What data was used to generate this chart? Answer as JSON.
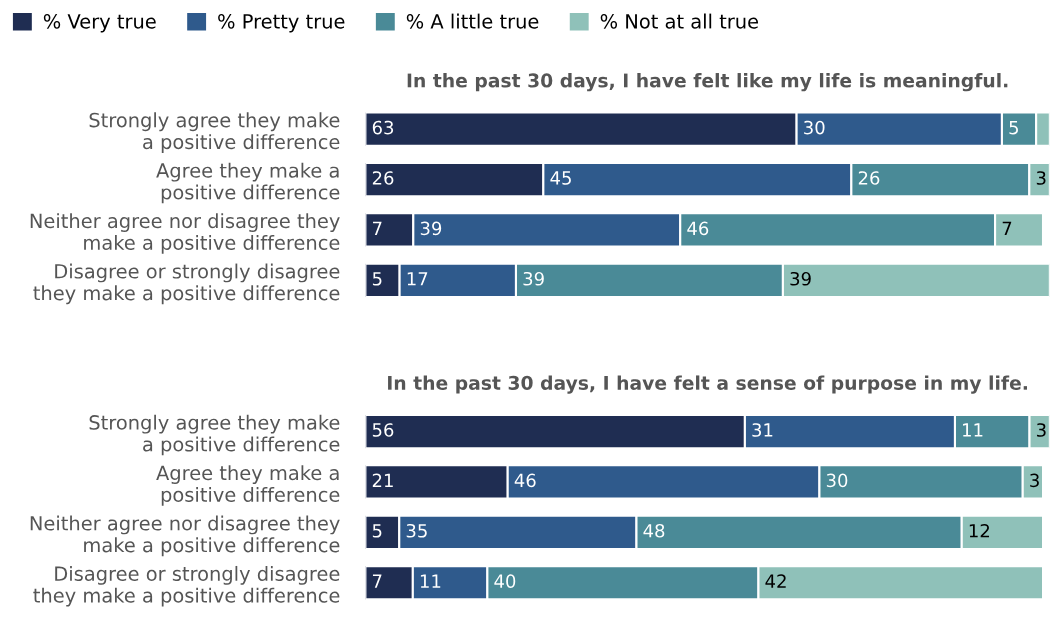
{
  "chart_data": [
    {
      "type": "bar",
      "orientation": "horizontal",
      "stacked": true,
      "legend": "top left",
      "title": "In the past 30 days, I have felt like my life is meaningful.",
      "categories": [
        "Strongly agree they make\na positive difference",
        "Agree they make a\npositive difference",
        "Neither agree nor disagree they\nmake a positive difference",
        "Disagree or strongly disagree\nthey make a positive difference"
      ],
      "series": [
        {
          "name": "% Very true",
          "color": "#1f2d52",
          "values": [
            63,
            26,
            7,
            5
          ],
          "value_labels": [
            "63",
            "26",
            "7",
            "5"
          ]
        },
        {
          "name": "% Pretty true",
          "color": "#2f5a8c",
          "values": [
            30,
            45,
            39,
            17
          ],
          "value_labels": [
            "30",
            "45",
            "39",
            "17"
          ]
        },
        {
          "name": "% A little true",
          "color": "#4a8a97",
          "values": [
            5,
            26,
            46,
            39
          ],
          "value_labels": [
            "5",
            "26",
            "46",
            "39"
          ]
        },
        {
          "name": "% Not at all true",
          "color": "#8fc1b9",
          "values": [
            2,
            3,
            7,
            39
          ],
          "value_labels": [
            null,
            "3",
            "7",
            "39"
          ]
        }
      ]
    },
    {
      "type": "bar",
      "orientation": "horizontal",
      "stacked": true,
      "title": "In the past 30 days, I have felt a sense of purpose in my life.",
      "categories": [
        "Strongly agree they make\na positive difference",
        "Agree they make a\npositive difference",
        "Neither agree nor disagree they\nmake a positive difference",
        "Disagree or strongly disagree\nthey make a positive difference"
      ],
      "series": [
        {
          "color": "#1f2d52",
          "values": [
            56,
            21,
            5,
            7
          ],
          "value_labels": [
            "56",
            "21",
            "5",
            "7"
          ]
        },
        {
          "color": "#2f5a8c",
          "values": [
            31,
            46,
            35,
            11
          ],
          "value_labels": [
            "31",
            "46",
            "35",
            "11"
          ]
        },
        {
          "color": "#4a8a97",
          "values": [
            11,
            30,
            48,
            40
          ],
          "value_labels": [
            "11",
            "30",
            "48",
            "40"
          ]
        },
        {
          "color": "#8fc1b9",
          "values": [
            3,
            3,
            12,
            42
          ],
          "value_labels": [
            "3",
            "3",
            "12",
            "42"
          ]
        }
      ]
    }
  ]
}
